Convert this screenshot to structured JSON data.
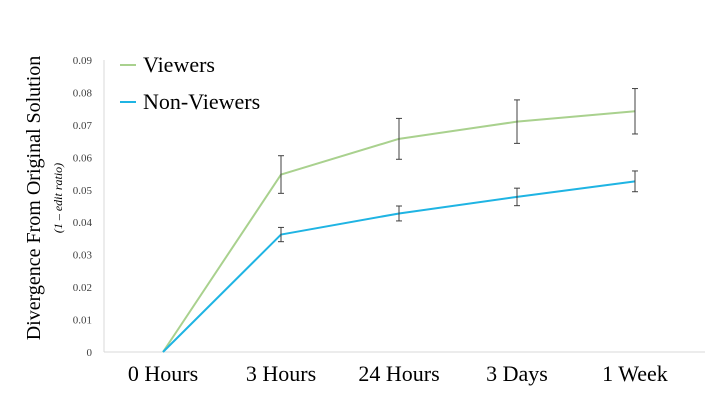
{
  "chart_data": {
    "type": "line",
    "categories": [
      "0 Hours",
      "3 Hours",
      "24 Hours",
      "3 Days",
      "1 Week"
    ],
    "ylabel": "Divergence From Original Solution",
    "ylabel_sub": "(1 – edit ratio)",
    "ylim": [
      0,
      0.09
    ],
    "yticks": [
      "0",
      "0.01",
      "0.02",
      "0.03",
      "0.04",
      "0.05",
      "0.06",
      "0.07",
      "0.08",
      "0.09"
    ],
    "legend_position": "top-left",
    "grid": false,
    "series": [
      {
        "name": "Viewers",
        "color": "#a9d18e",
        "values": [
          0,
          0.0547,
          0.0657,
          0.071,
          0.0742
        ],
        "error": [
          0,
          0.0058,
          0.0063,
          0.0067,
          0.007
        ]
      },
      {
        "name": "Non-Viewers",
        "color": "#1fb4e3",
        "values": [
          0,
          0.0362,
          0.0427,
          0.0478,
          0.0526
        ],
        "error": [
          0,
          0.0022,
          0.0023,
          0.0027,
          0.0032
        ]
      }
    ]
  }
}
